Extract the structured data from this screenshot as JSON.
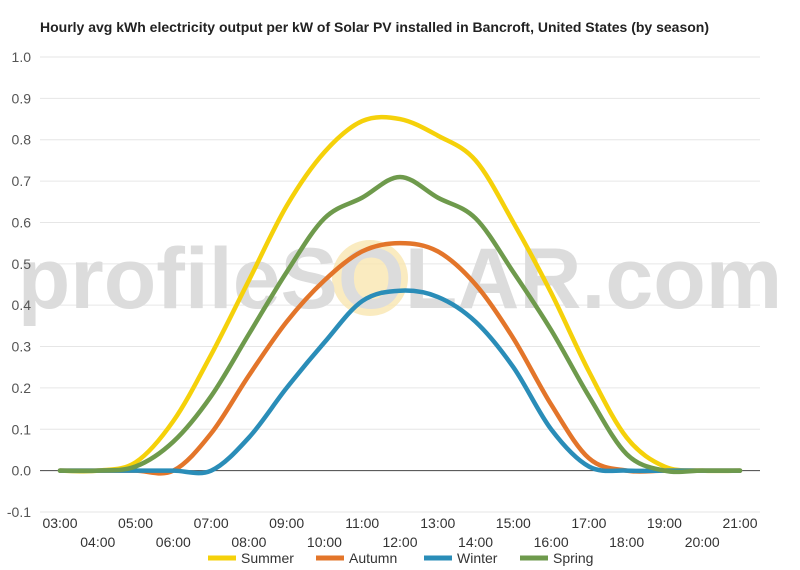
{
  "chart_data": {
    "type": "line",
    "title": "Hourly avg kWh electricity output per kW of Solar PV installed in Bancroft, United States (by season)",
    "xlabel": "",
    "ylabel": "",
    "ylim": [
      -0.1,
      1.0
    ],
    "y_ticks": [
      "-0.1",
      "0.0",
      "0.1",
      "0.2",
      "0.3",
      "0.4",
      "0.5",
      "0.6",
      "0.7",
      "0.8",
      "0.9",
      "1.0"
    ],
    "x": [
      "03:00",
      "04:00",
      "05:00",
      "06:00",
      "07:00",
      "08:00",
      "09:00",
      "10:00",
      "11:00",
      "12:00",
      "13:00",
      "14:00",
      "15:00",
      "16:00",
      "17:00",
      "18:00",
      "19:00",
      "20:00",
      "21:00"
    ],
    "grid": true,
    "legend_position": "bottom",
    "series": [
      {
        "name": "Summer",
        "color": "#f5d10a",
        "values": [
          0.0,
          0.0,
          0.02,
          0.12,
          0.28,
          0.46,
          0.64,
          0.77,
          0.845,
          0.85,
          0.81,
          0.75,
          0.6,
          0.43,
          0.24,
          0.08,
          0.01,
          0.0,
          0.0
        ]
      },
      {
        "name": "Autumn",
        "color": "#e3752a",
        "values": [
          0.0,
          0.0,
          0.0,
          0.0,
          0.09,
          0.23,
          0.36,
          0.46,
          0.53,
          0.55,
          0.53,
          0.45,
          0.32,
          0.16,
          0.03,
          0.0,
          0.0,
          0.0,
          0.0
        ]
      },
      {
        "name": "Winter",
        "color": "#2a8db8",
        "values": [
          0.0,
          0.0,
          0.0,
          0.0,
          0.0,
          0.08,
          0.2,
          0.31,
          0.41,
          0.435,
          0.42,
          0.36,
          0.25,
          0.1,
          0.01,
          0.0,
          0.0,
          0.0,
          0.0
        ]
      },
      {
        "name": "Spring",
        "color": "#6e9a4c",
        "values": [
          0.0,
          0.0,
          0.01,
          0.07,
          0.18,
          0.33,
          0.48,
          0.61,
          0.66,
          0.71,
          0.66,
          0.61,
          0.48,
          0.34,
          0.18,
          0.04,
          0.0,
          0.0,
          0.0
        ]
      }
    ],
    "watermark": "profileSOLAR.com"
  }
}
